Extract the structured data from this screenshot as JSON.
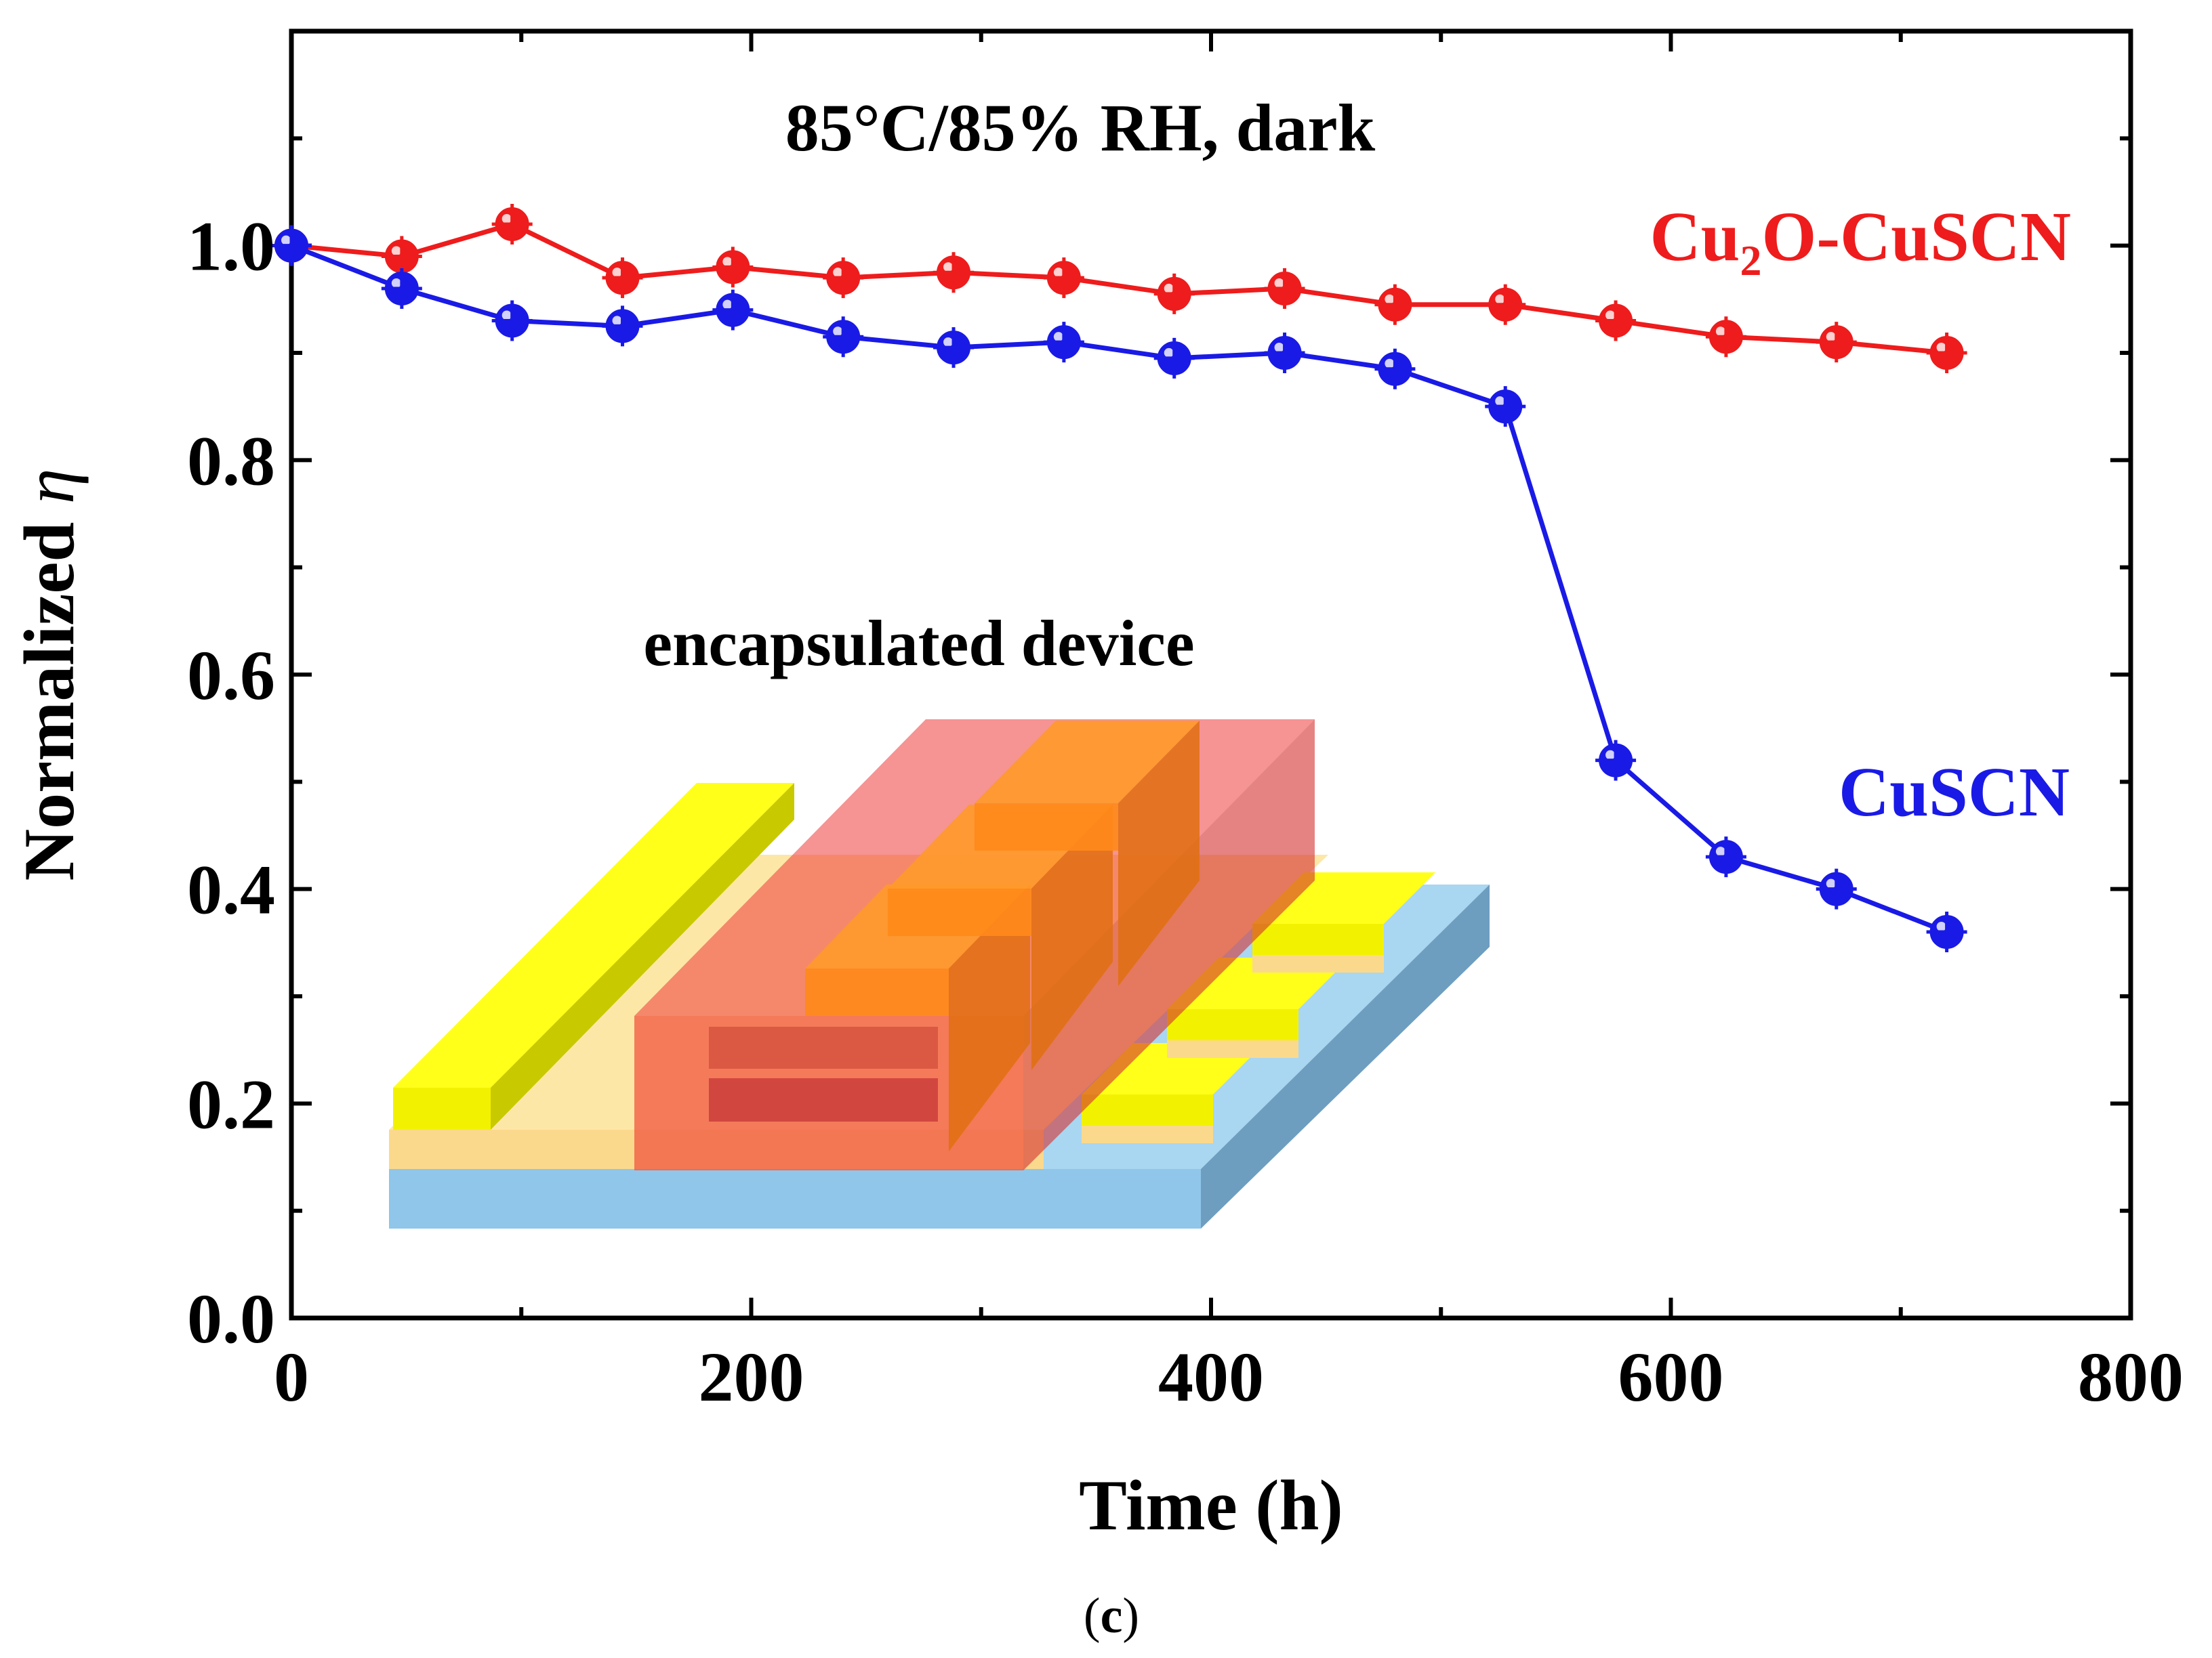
{
  "chart_data": {
    "type": "line",
    "title": "85°C/85% RH, dark",
    "xlabel": "Time (h)",
    "ylabel_text": "Normalized ",
    "ylabel_symbol": "η",
    "xlim": [
      0,
      800
    ],
    "ylim": [
      0.0,
      1.2
    ],
    "xticks": [
      0,
      200,
      400,
      600,
      800
    ],
    "xtick_labels": [
      "0",
      "200",
      "400",
      "600",
      "800"
    ],
    "yticks": [
      0.0,
      0.2,
      0.4,
      0.6,
      0.8,
      1.0
    ],
    "ytick_labels": [
      "0.0",
      "0.2",
      "0.4",
      "0.6",
      "0.8",
      "1.0"
    ],
    "series": [
      {
        "name": "Cu2O-CuSCN",
        "label_parts": [
          "Cu",
          "2",
          "O-CuSCN"
        ],
        "color": "#ee1c1c",
        "x": [
          0,
          48,
          96,
          144,
          192,
          240,
          288,
          336,
          384,
          432,
          480,
          528,
          576,
          624,
          672,
          720
        ],
        "y": [
          1.0,
          0.99,
          1.02,
          0.97,
          0.98,
          0.97,
          0.975,
          0.97,
          0.955,
          0.96,
          0.945,
          0.945,
          0.93,
          0.915,
          0.91,
          0.9
        ]
      },
      {
        "name": "CuSCN",
        "label_parts": [
          "CuSCN"
        ],
        "color": "#1a1ae6",
        "x": [
          0,
          48,
          96,
          144,
          192,
          240,
          288,
          336,
          384,
          432,
          480,
          528,
          576,
          624,
          672,
          720
        ],
        "y": [
          1.0,
          0.96,
          0.93,
          0.925,
          0.94,
          0.915,
          0.905,
          0.91,
          0.895,
          0.9,
          0.885,
          0.85,
          0.52,
          0.43,
          0.4,
          0.36
        ]
      }
    ],
    "inset_label": "encapsulated device",
    "panel_label_parts": [
      "(",
      "c",
      ")"
    ]
  }
}
